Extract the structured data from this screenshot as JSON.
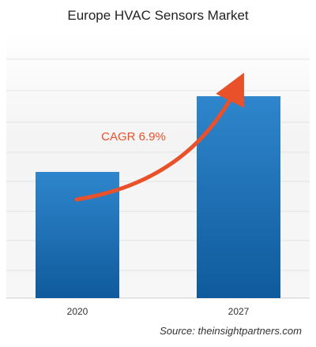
{
  "chart_data": {
    "type": "bar",
    "title": "Europe HVAC Sensors Market",
    "categories": [
      "2020",
      "2027"
    ],
    "values": [
      1.0,
      1.6
    ],
    "ylim": [
      0,
      2.1
    ],
    "grid": true,
    "annotation": "CAGR 6.9%",
    "source": "Source: theinsightpartners.com"
  },
  "colors": {
    "bar_top": "#2f86cc",
    "bar_bottom": "#0f5a9c",
    "arrow": "#e8512a",
    "grid": "#e3e3e3",
    "background_band": "#f4f4f4"
  }
}
